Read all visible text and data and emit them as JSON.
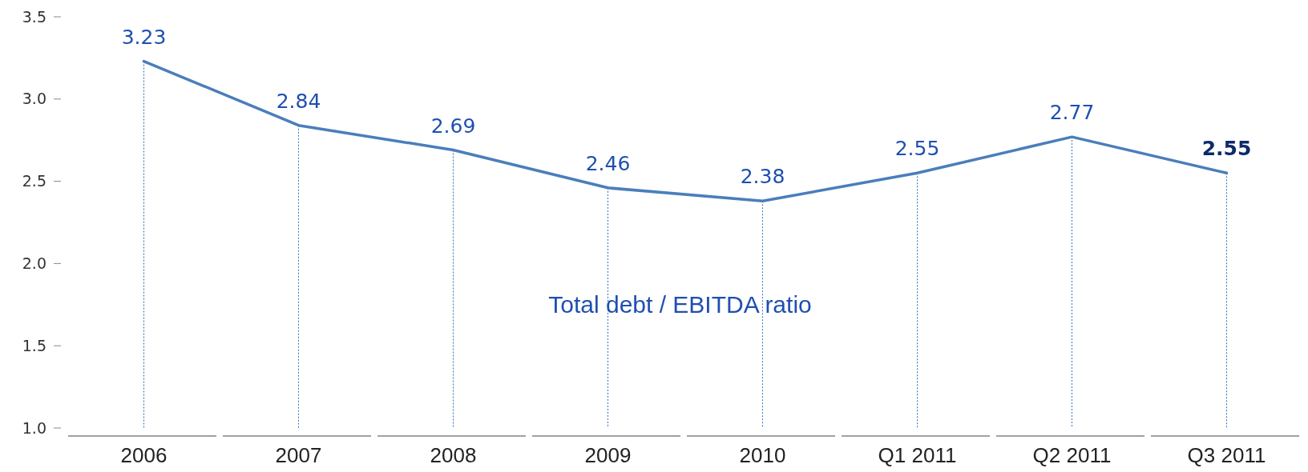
{
  "chart_data": {
    "type": "line",
    "categories": [
      "2006",
      "2007",
      "2008",
      "2009",
      "2010",
      "Q1 2011",
      "Q2 2011",
      "Q3 2011"
    ],
    "series": [
      {
        "name": "Total debt / EBITDA ratio",
        "color": "#4a7ebb",
        "values": [
          3.23,
          2.84,
          2.69,
          2.46,
          2.38,
          2.55,
          2.77,
          2.55
        ]
      }
    ],
    "ylim": [
      1,
      3.5
    ],
    "yticks": [
      {
        "value": 1,
        "label": "1.0"
      },
      {
        "value": 1.5,
        "label": "1.5"
      },
      {
        "value": 2,
        "label": "2.0"
      },
      {
        "value": 2.5,
        "label": "2.5"
      },
      {
        "value": 3,
        "label": "3.0"
      },
      {
        "value": 3.5,
        "label": "3.5"
      }
    ],
    "data_labels": true,
    "grid": "x",
    "marker": "none",
    "line_style": "solid"
  }
}
